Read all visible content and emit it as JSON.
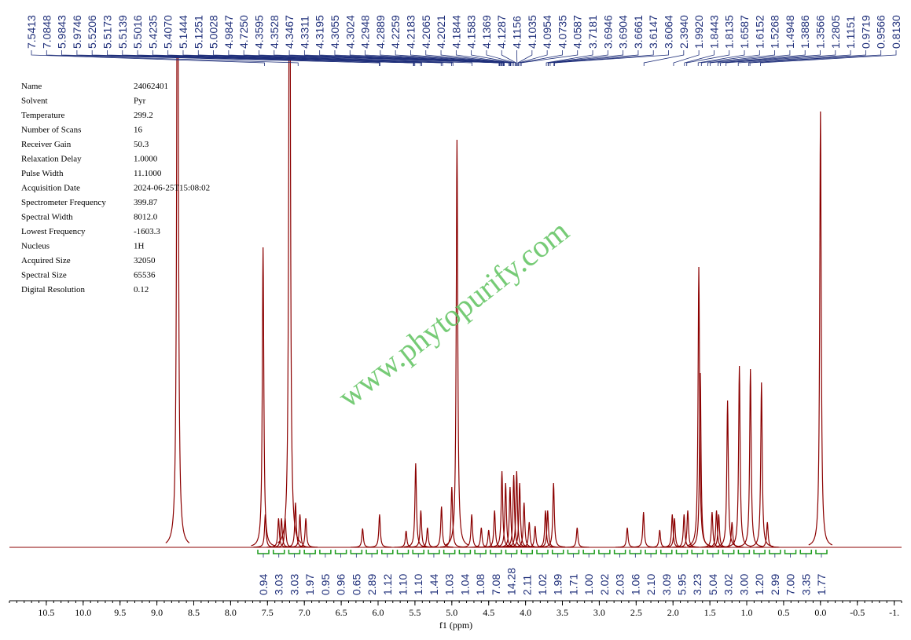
{
  "chart_data": {
    "type": "spectrum",
    "xlabel": "f1 (ppm)",
    "xlim": [
      11.0,
      -1.1
    ],
    "xticks": [
      10.5,
      {
        "value": 10,
        "label": "10.0"
      },
      9.5,
      {
        "value": 9,
        "label": "9.0"
      },
      8.5,
      {
        "value": 8,
        "label": "8.0"
      },
      7.5,
      {
        "value": 7,
        "label": "7.0"
      },
      6.5,
      {
        "value": 6,
        "label": "6.0"
      },
      5.5,
      {
        "value": 5,
        "label": "5.0"
      },
      4.5,
      {
        "value": 4,
        "label": "4.0"
      },
      3.5,
      {
        "value": 3,
        "label": "3.0"
      },
      2.5,
      {
        "value": 2,
        "label": "2.0"
      },
      1.5,
      {
        "value": 1,
        "label": "1.0"
      },
      0.5,
      {
        "value": 0,
        "label": "0.0"
      },
      -0.5,
      {
        "value": -1,
        "label": "-1."
      }
    ],
    "color": "#8b0000",
    "peaks": {
      "x": [
        8.72,
        7.56,
        7.53,
        7.35,
        7.31,
        7.26,
        7.2,
        7.12,
        7.06,
        6.98,
        6.21,
        5.98,
        5.62,
        5.49,
        5.42,
        5.33,
        5.14,
        5.0,
        4.93,
        4.73,
        4.6,
        4.5,
        4.42,
        4.32,
        4.27,
        4.21,
        4.16,
        4.12,
        4.08,
        4.02,
        3.95,
        3.87,
        3.73,
        3.7,
        3.62,
        3.3,
        2.62,
        2.4,
        2.18,
        2.01,
        1.98,
        1.85,
        1.8,
        1.65,
        1.63,
        1.47,
        1.41,
        1.38,
        1.26,
        1.2,
        1.1,
        0.95,
        0.8,
        0.72,
        0.0
      ],
      "intensity": [
        1000,
        382,
        42,
        37,
        37,
        37,
        1000,
        57,
        42,
        37,
        24,
        42,
        21,
        107,
        47,
        25,
        52,
        77,
        519,
        42,
        25,
        22,
        47,
        97,
        82,
        77,
        92,
        97,
        82,
        57,
        32,
        27,
        47,
        47,
        82,
        25,
        25,
        45,
        22,
        42,
        37,
        42,
        47,
        357,
        222,
        45,
        47,
        42,
        187,
        32,
        231,
        227,
        210,
        32,
        555
      ]
    },
    "peak_labels": [
      "7.5413",
      "7.0848",
      "5.9843",
      "5.9746",
      "5.5206",
      "5.5173",
      "5.5139",
      "5.5016",
      "5.4235",
      "5.4070",
      "5.1444",
      "5.1251",
      "5.0028",
      "4.9847",
      "4.7250",
      "4.3595",
      "4.3528",
      "4.3467",
      "4.3311",
      "4.3195",
      "4.3055",
      "4.3024",
      "4.2948",
      "4.2889",
      "4.2259",
      "4.2183",
      "4.2065",
      "4.2021",
      "4.1844",
      "4.1583",
      "4.1369",
      "4.1287",
      "4.1156",
      "4.1035",
      "4.0954",
      "4.0735",
      "4.0587",
      "3.7181",
      "3.6946",
      "3.6904",
      "3.6661",
      "3.6147",
      "3.6064",
      "2.3940",
      "1.9920",
      "1.8443",
      "1.8135",
      "1.6587",
      "1.6152",
      "1.5268",
      "1.4948",
      "1.3886",
      "1.3566",
      "1.2805",
      "1.1151",
      "0.9719",
      "0.9566",
      "0.8130"
    ],
    "integrals": [
      "0.94",
      "3.03",
      "3.03",
      "1.97",
      "0.95",
      "0.96",
      "0.65",
      "2.89",
      "1.12",
      "1.10",
      "1.10",
      "1.44",
      "1.03",
      "1.04",
      "1.08",
      "7.08",
      "14.28",
      "2.11",
      "1.02",
      "1.99",
      "1.71",
      "1.00",
      "2.02",
      "2.03",
      "1.06",
      "2.10",
      "3.09",
      "5.95",
      "3.23",
      "5.04",
      "3.02",
      "3.00",
      "1.20",
      "2.99",
      "7.00",
      "3.35",
      "1.77"
    ],
    "watermark": "www.phytopurify.com"
  },
  "parameters": [
    [
      "Name",
      "24062401"
    ],
    [
      "Solvent",
      "Pyr"
    ],
    [
      "Temperature",
      "299.2"
    ],
    [
      "Number of Scans",
      "16"
    ],
    [
      "Receiver Gain",
      "50.3"
    ],
    [
      "Relaxation Delay",
      "1.0000"
    ],
    [
      "Pulse Width",
      "11.1000"
    ],
    [
      "Acquisition Date",
      "2024-06-25T15:08:02"
    ],
    [
      "Spectrometer Frequency",
      "399.87"
    ],
    [
      "Spectral Width",
      "8012.0"
    ],
    [
      "Lowest Frequency",
      "-1603.3"
    ],
    [
      "Nucleus",
      "1H"
    ],
    [
      "Acquired Size",
      "32050"
    ],
    [
      "Spectral Size",
      "65536"
    ],
    [
      "Digital Resolution",
      "0.12"
    ]
  ]
}
